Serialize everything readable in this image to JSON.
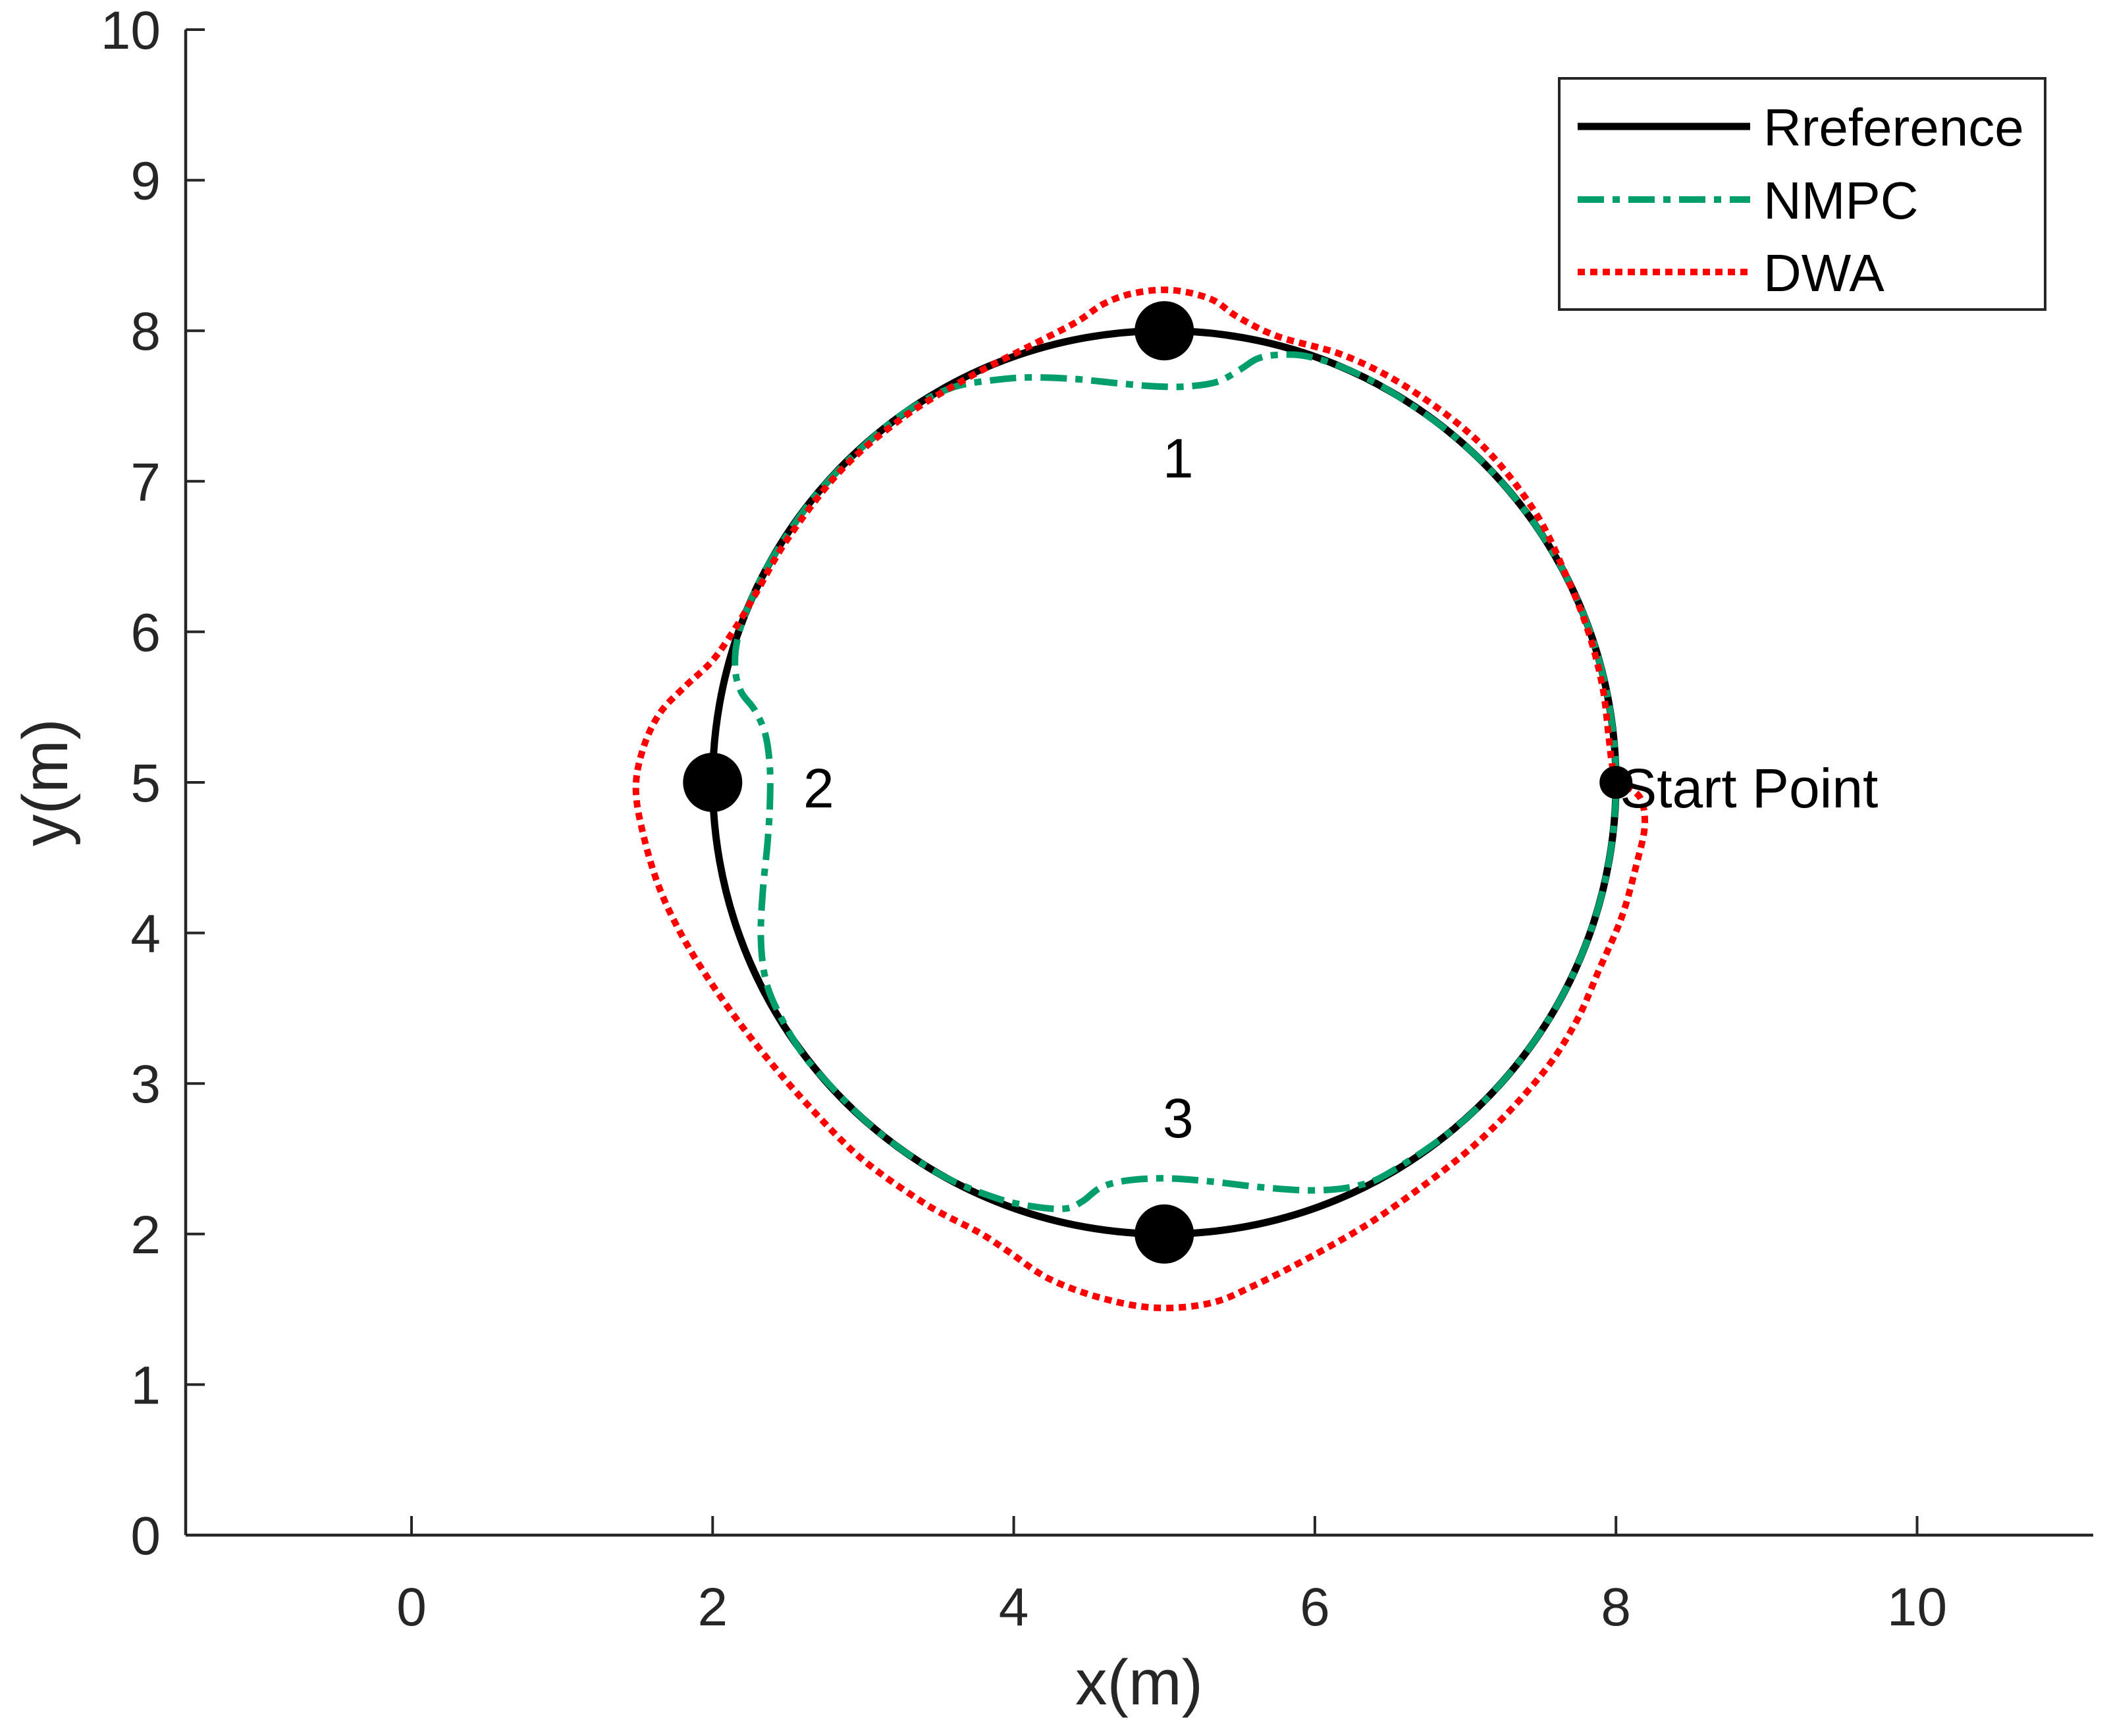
{
  "chart_data": {
    "type": "line",
    "xlabel": "x(m)",
    "ylabel": "y(m)",
    "xlim": [
      -1.5,
      11.17
    ],
    "ylim": [
      0,
      10
    ],
    "xticks": [
      0,
      2,
      4,
      6,
      8,
      10
    ],
    "yticks": [
      0,
      1,
      2,
      3,
      4,
      5,
      6,
      7,
      8,
      9,
      10
    ],
    "grid": false,
    "legend_position": "top-right",
    "series": [
      {
        "name": "Rreference",
        "color": "#000000",
        "style": "solid",
        "points": [
          [
            8.0,
            5.0
          ],
          [
            7.954,
            5.521
          ],
          [
            7.819,
            6.026
          ],
          [
            7.598,
            6.5
          ],
          [
            7.298,
            6.928
          ],
          [
            6.928,
            7.298
          ],
          [
            6.5,
            7.598
          ],
          [
            6.026,
            7.819
          ],
          [
            5.521,
            7.954
          ],
          [
            5.0,
            8.0
          ],
          [
            4.479,
            7.954
          ],
          [
            3.974,
            7.819
          ],
          [
            3.5,
            7.598
          ],
          [
            3.072,
            7.298
          ],
          [
            2.702,
            6.928
          ],
          [
            2.402,
            6.5
          ],
          [
            2.181,
            6.026
          ],
          [
            2.046,
            5.521
          ],
          [
            2.0,
            5.0
          ],
          [
            2.046,
            4.479
          ],
          [
            2.181,
            3.974
          ],
          [
            2.402,
            3.5
          ],
          [
            2.702,
            3.072
          ],
          [
            3.072,
            2.702
          ],
          [
            3.5,
            2.402
          ],
          [
            3.974,
            2.181
          ],
          [
            4.479,
            2.046
          ],
          [
            5.0,
            2.0
          ],
          [
            5.521,
            2.046
          ],
          [
            6.026,
            2.181
          ],
          [
            6.5,
            2.402
          ],
          [
            6.928,
            2.702
          ],
          [
            7.298,
            3.072
          ],
          [
            7.598,
            3.5
          ],
          [
            7.819,
            3.974
          ],
          [
            7.954,
            4.479
          ],
          [
            8.0,
            5.0
          ]
        ]
      },
      {
        "name": "NMPC",
        "color": "#009e6b",
        "style": "dash-dot",
        "points": [
          [
            8.0,
            5.0
          ],
          [
            7.954,
            5.521
          ],
          [
            7.819,
            6.026
          ],
          [
            7.598,
            6.5
          ],
          [
            7.298,
            6.928
          ],
          [
            6.928,
            7.298
          ],
          [
            6.5,
            7.598
          ],
          [
            6.2,
            7.75
          ],
          [
            5.95,
            7.83
          ],
          [
            5.76,
            7.84
          ],
          [
            5.62,
            7.815
          ],
          [
            5.5,
            7.74
          ],
          [
            5.35,
            7.66
          ],
          [
            5.15,
            7.63
          ],
          [
            4.95,
            7.63
          ],
          [
            4.7,
            7.65
          ],
          [
            4.4,
            7.68
          ],
          [
            4.1,
            7.69
          ],
          [
            3.85,
            7.67
          ],
          [
            3.6,
            7.625
          ],
          [
            3.35,
            7.505
          ],
          [
            3.072,
            7.298
          ],
          [
            2.702,
            6.928
          ],
          [
            2.402,
            6.5
          ],
          [
            2.25,
            6.2
          ],
          [
            2.165,
            5.95
          ],
          [
            2.15,
            5.75
          ],
          [
            2.19,
            5.6
          ],
          [
            2.28,
            5.48
          ],
          [
            2.35,
            5.32
          ],
          [
            2.38,
            5.1
          ],
          [
            2.38,
            4.85
          ],
          [
            2.365,
            4.6
          ],
          [
            2.335,
            4.3
          ],
          [
            2.32,
            4.0
          ],
          [
            2.34,
            3.75
          ],
          [
            2.4,
            3.55
          ],
          [
            2.55,
            3.27
          ],
          [
            2.702,
            3.072
          ],
          [
            3.072,
            2.702
          ],
          [
            3.5,
            2.402
          ],
          [
            3.88,
            2.24
          ],
          [
            4.15,
            2.18
          ],
          [
            4.35,
            2.17
          ],
          [
            4.46,
            2.22
          ],
          [
            4.58,
            2.31
          ],
          [
            4.75,
            2.355
          ],
          [
            5.0,
            2.37
          ],
          [
            5.3,
            2.35
          ],
          [
            5.65,
            2.31
          ],
          [
            6.0,
            2.29
          ],
          [
            6.28,
            2.32
          ],
          [
            6.5,
            2.41
          ],
          [
            6.928,
            2.702
          ],
          [
            7.298,
            3.072
          ],
          [
            7.598,
            3.5
          ],
          [
            7.819,
            3.974
          ],
          [
            7.954,
            4.479
          ],
          [
            8.0,
            5.0
          ]
        ]
      },
      {
        "name": "DWA",
        "color": "#ff0000",
        "style": "dotted",
        "points": [
          [
            8.0,
            5.0
          ],
          [
            7.97,
            5.15
          ],
          [
            7.95,
            5.32
          ],
          [
            7.91,
            5.64
          ],
          [
            7.82,
            5.99
          ],
          [
            7.68,
            6.35
          ],
          [
            7.46,
            6.8
          ],
          [
            7.1,
            7.25
          ],
          [
            6.65,
            7.6
          ],
          [
            6.21,
            7.83
          ],
          [
            5.76,
            7.96
          ],
          [
            5.49,
            8.09
          ],
          [
            5.31,
            8.21
          ],
          [
            5.05,
            8.27
          ],
          [
            4.8,
            8.25
          ],
          [
            4.6,
            8.18
          ],
          [
            4.42,
            8.06
          ],
          [
            4.15,
            7.92
          ],
          [
            3.7,
            7.69
          ],
          [
            3.26,
            7.42
          ],
          [
            2.85,
            7.07
          ],
          [
            2.5,
            6.62
          ],
          [
            2.29,
            6.26
          ],
          [
            2.16,
            6.04
          ],
          [
            2.0,
            5.81
          ],
          [
            1.82,
            5.64
          ],
          [
            1.65,
            5.46
          ],
          [
            1.54,
            5.23
          ],
          [
            1.49,
            4.96
          ],
          [
            1.54,
            4.65
          ],
          [
            1.65,
            4.29
          ],
          [
            1.82,
            3.94
          ],
          [
            2.05,
            3.58
          ],
          [
            2.32,
            3.22
          ],
          [
            2.63,
            2.86
          ],
          [
            2.99,
            2.5
          ],
          [
            3.43,
            2.19
          ],
          [
            3.77,
            2.01
          ],
          [
            3.97,
            1.88
          ],
          [
            4.24,
            1.7
          ],
          [
            4.6,
            1.57
          ],
          [
            4.95,
            1.51
          ],
          [
            5.3,
            1.54
          ],
          [
            5.58,
            1.65
          ],
          [
            6.03,
            1.88
          ],
          [
            6.48,
            2.15
          ],
          [
            7.06,
            2.59
          ],
          [
            7.49,
            3.04
          ],
          [
            7.73,
            3.4
          ],
          [
            7.89,
            3.76
          ],
          [
            8.04,
            4.11
          ],
          [
            8.14,
            4.47
          ],
          [
            8.19,
            4.7
          ],
          [
            8.17,
            4.88
          ],
          [
            8.08,
            4.97
          ],
          [
            8.0,
            5.0
          ]
        ]
      }
    ],
    "waypoints": [
      {
        "label": "1",
        "x": 5,
        "y": 8,
        "label_position": "below"
      },
      {
        "label": "2",
        "x": 2,
        "y": 5,
        "label_position": "right"
      },
      {
        "label": "3",
        "x": 5,
        "y": 2,
        "label_position": "above"
      }
    ],
    "start_point": {
      "label": "Start Point",
      "x": 8,
      "y": 5,
      "label_position": "right"
    }
  }
}
